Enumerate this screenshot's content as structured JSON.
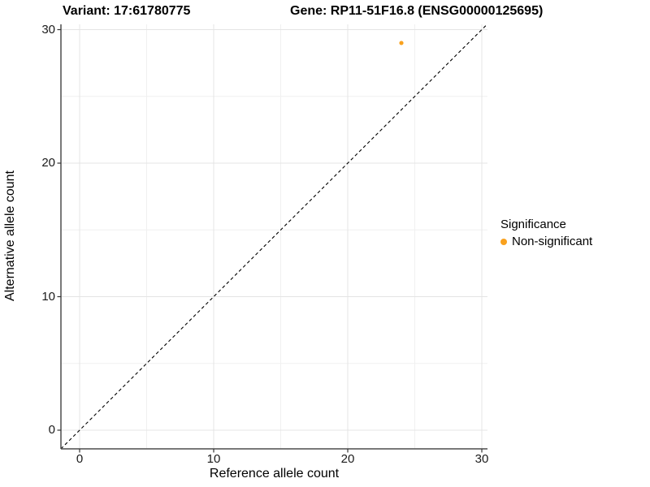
{
  "chart_data": {
    "type": "scatter",
    "title_left": "Variant: 17:61780775",
    "title_right": "Gene: RP11-51F16.8 (ENSG00000125695)",
    "xlabel": "Reference allele count",
    "ylabel": "Alternative allele count",
    "xlim": [
      -1.4,
      30.4
    ],
    "ylim": [
      -1.4,
      30.4
    ],
    "x_major_ticks": [
      0,
      10,
      20,
      30
    ],
    "y_major_ticks": [
      0,
      10,
      20,
      30
    ],
    "x_minor_ticks": [
      5,
      15,
      25
    ],
    "y_minor_ticks": [
      5,
      15,
      25
    ],
    "grid": true,
    "points": [
      {
        "x": 24,
        "y": 29,
        "series": "Non-significant"
      }
    ],
    "reference_line": {
      "kind": "identity-diagonal",
      "style": "dashed",
      "x1": -1.4,
      "y1": -1.4,
      "x2": 30.4,
      "y2": 30.4
    },
    "legend": {
      "title": "Significance",
      "position": "right",
      "entries": [
        {
          "label": "Non-significant",
          "color": "#F9A11E"
        }
      ]
    },
    "colors": {
      "point": "#F9A11E",
      "grid_major": "#E4E4E4",
      "grid_minor": "#F0F0F0",
      "axis_line": "#4d4d4d",
      "tick_mark": "#333333",
      "dashed_line": "#000000",
      "background": "#ffffff"
    }
  }
}
